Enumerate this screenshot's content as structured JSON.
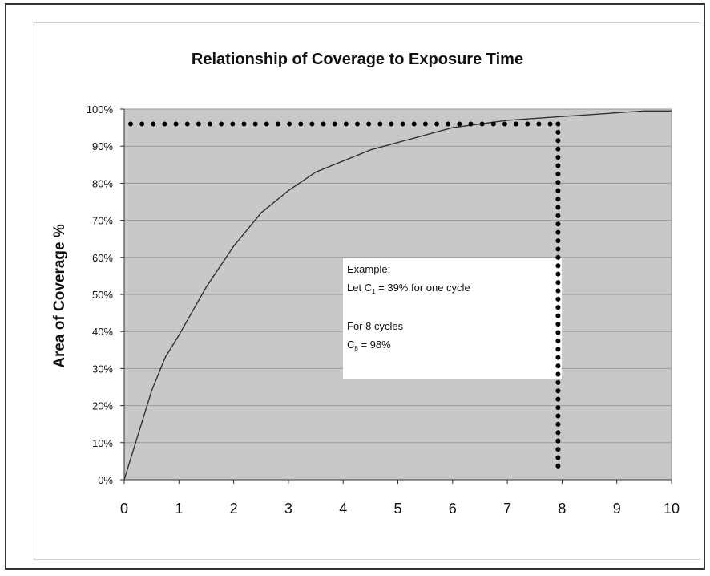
{
  "chart_data": {
    "type": "line",
    "title": "Relationship of Coverage to Exposure Time",
    "xlabel": "",
    "ylabel": "Area of Coverage %",
    "xlim": [
      0,
      10
    ],
    "ylim": [
      0,
      100
    ],
    "x_ticks": [
      "0",
      "1",
      "2",
      "3",
      "4",
      "5",
      "6",
      "7",
      "8",
      "9",
      "10"
    ],
    "y_ticks": [
      "0%",
      "10%",
      "20%",
      "30%",
      "40%",
      "50%",
      "60%",
      "70%",
      "80%",
      "90%",
      "100%"
    ],
    "grid": "horizontal",
    "colors": {
      "plot_background": "#c8c8c8",
      "curve": "#333333",
      "marker_dots": "#000000",
      "grid": "#9a9a9a"
    },
    "series": [
      {
        "x": [
          0,
          0.25,
          0.5,
          0.75,
          1,
          1.5,
          2,
          2.5,
          3,
          3.5,
          4,
          4.5,
          5,
          5.5,
          6,
          6.5,
          7,
          7.5,
          8,
          8.5,
          9,
          9.5,
          10
        ],
        "values": [
          0,
          12,
          24,
          33,
          39,
          52,
          63,
          72,
          78,
          83,
          86,
          89,
          91,
          93,
          95,
          96,
          97,
          97.5,
          98,
          98.5,
          99,
          99.5,
          99.5
        ]
      }
    ],
    "reference_lines": {
      "horizontal_at_y": 96,
      "vertical_at_x": 8,
      "style": "dotted"
    },
    "annotation": {
      "line1": "Example:",
      "line2_prefix": "Let C",
      "line2_sub": "1",
      "line2_suffix": " = 39% for one cycle",
      "line3": "For 8 cycles",
      "line4_prefix": "C",
      "line4_sub": "8",
      "line4_suffix": " = 98%"
    }
  }
}
